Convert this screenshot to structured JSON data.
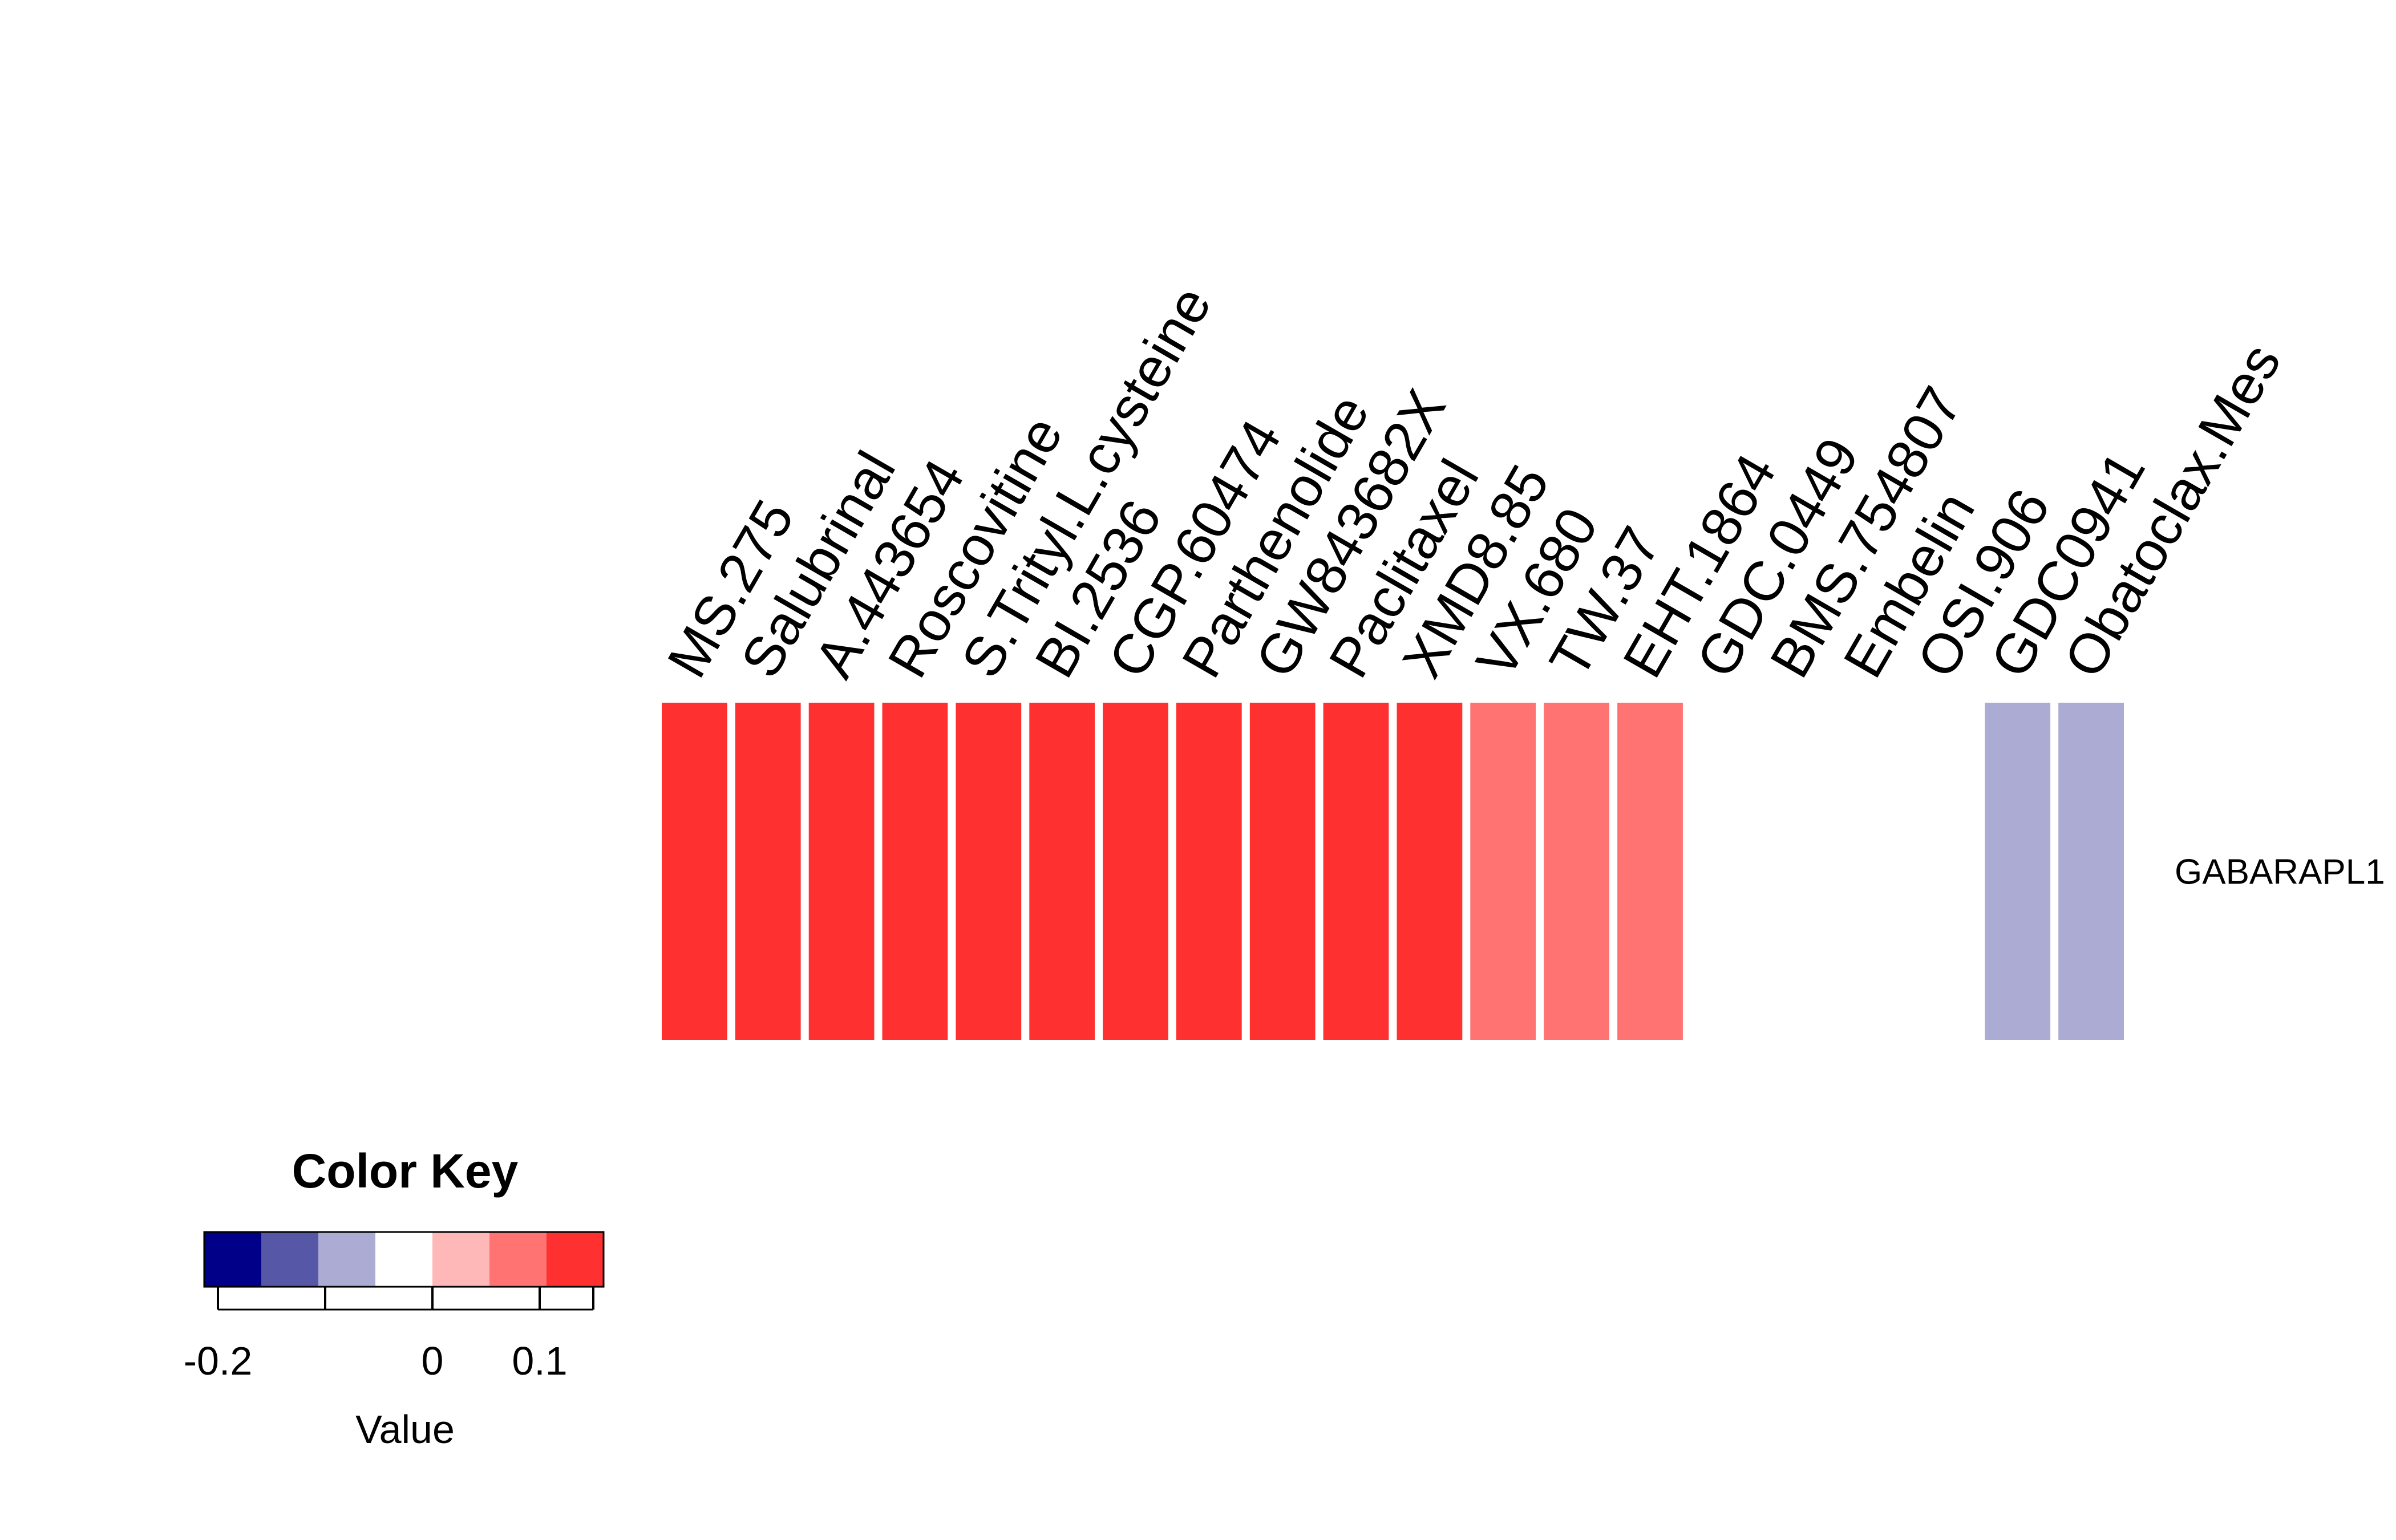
{
  "chart_data": {
    "type": "heatmap",
    "rows": [
      "GABARAPL1"
    ],
    "columns": [
      "MS.275",
      "Salubrinal",
      "A.443654",
      "Roscovitine",
      "S.Trityl.L.cysteine",
      "BI.2536",
      "CGP.60474",
      "Parthenolide",
      "GW843682X",
      "Paclitaxel",
      "XMD8.85",
      "VX.680",
      "TW.37",
      "EHT.1864",
      "GDC.0449",
      "BMS.754807",
      "Embelin",
      "OSI.906",
      "GDC0941",
      "Obatoclax.Mes"
    ],
    "values": [
      [
        0.15,
        0.15,
        0.1,
        0.1,
        0.1,
        0.1,
        0.1,
        0.1,
        0.1,
        0.1,
        0.1,
        0.05,
        0.05,
        0.05,
        -0.05,
        -0.05,
        -0.05,
        -0.05,
        -0.1,
        -0.1
      ]
    ],
    "color_key": {
      "title": "Color Key",
      "xlabel": "Value",
      "range": [
        -0.2,
        0.15
      ],
      "bins": [
        -0.2,
        -0.15,
        -0.1,
        -0.05,
        0.0,
        0.05,
        0.1,
        0.15
      ],
      "colors": [
        "#000088",
        "#5757A8",
        "#ABABD4",
        "#FFFFFF",
        "#FFB8B8",
        "#FF7373",
        "#FF3030"
      ],
      "ticks": [
        -0.2,
        -0.15,
        -0.1,
        -0.05,
        0.0,
        0.05,
        0.1,
        0.15
      ],
      "tick_labels": [
        "-0.2",
        "",
        "",
        "",
        "0",
        "",
        "0.1",
        ""
      ]
    }
  }
}
